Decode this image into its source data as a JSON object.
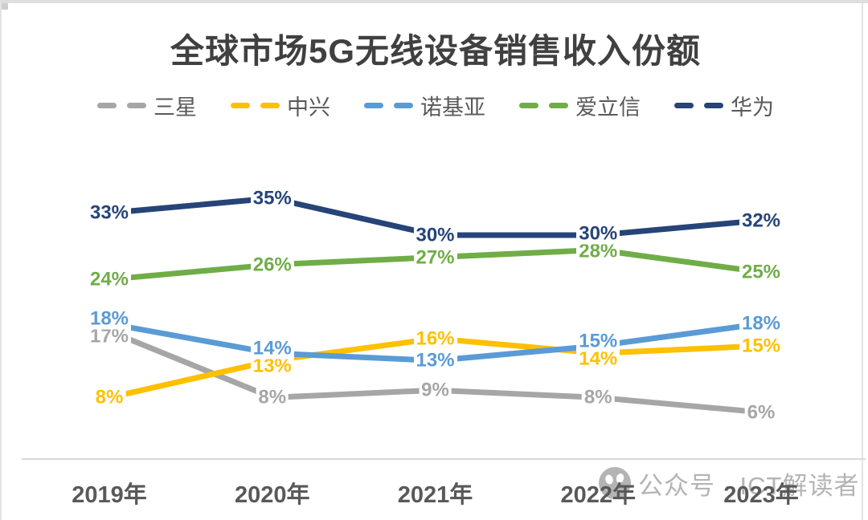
{
  "title": "全球市场5G无线设备销售收入份额",
  "chart_data": {
    "type": "line",
    "categories": [
      "2019年",
      "2020年",
      "2021年",
      "2022年",
      "2023年"
    ],
    "series": [
      {
        "name": "三星",
        "color": "#A6A6A6",
        "values": [
          17,
          8,
          9,
          8,
          6
        ]
      },
      {
        "name": "中兴",
        "color": "#FFC000",
        "values": [
          8,
          13,
          16,
          14,
          15
        ]
      },
      {
        "name": "诺基亚",
        "color": "#5B9BD5",
        "values": [
          18,
          14,
          13,
          15,
          18
        ]
      },
      {
        "name": "爱立信",
        "color": "#70AD47",
        "values": [
          24,
          26,
          27,
          28,
          25
        ]
      },
      {
        "name": "华为",
        "color": "#264478",
        "values": [
          33,
          35,
          30,
          30,
          32
        ]
      }
    ],
    "value_suffix": "%",
    "ylim": [
      0,
      40
    ],
    "grid": false,
    "legend_position": "top",
    "axis_line_color": "#D9D9D9",
    "text_color": "#595959"
  },
  "watermark": {
    "text": "公众号 · ICT解读者",
    "logo_icon": "wechat-official-account-logo"
  }
}
